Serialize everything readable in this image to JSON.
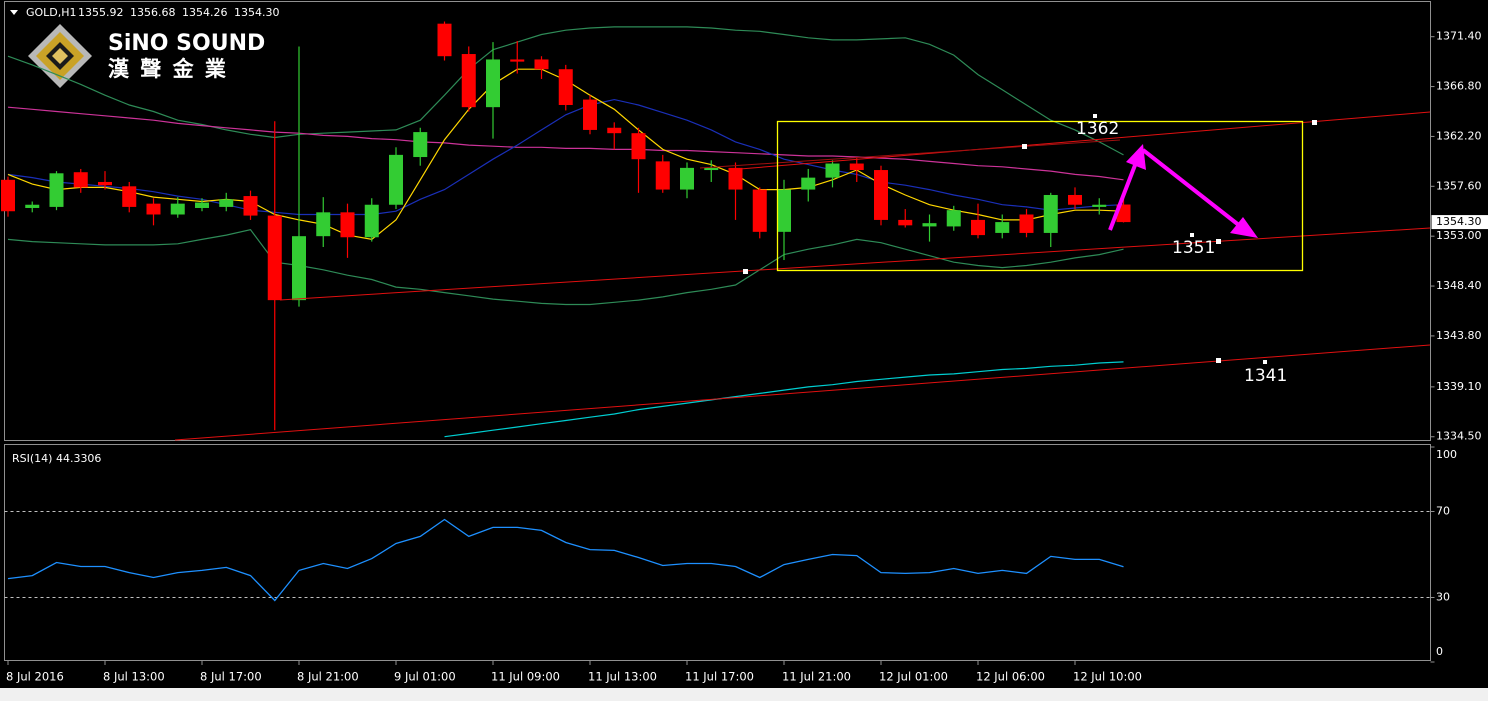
{
  "chart_data": {
    "type": "candlestick",
    "title": "GOLD,H1",
    "header_prices": [
      "1355.92",
      "1356.68",
      "1354.26",
      "1354.30"
    ],
    "logo": {
      "name": "SiNO SOUND",
      "subtitle": "漢 聲 金 業"
    },
    "categories": [
      "8 Jul 2016",
      null,
      null,
      null,
      "8 Jul 13:00",
      null,
      null,
      null,
      "8 Jul 17:00",
      null,
      null,
      null,
      "8 Jul 21:00",
      null,
      null,
      null,
      "9 Jul 01:00",
      null,
      null,
      null,
      "11 Jul 09:00",
      null,
      null,
      null,
      "11 Jul 13:00",
      null,
      null,
      null,
      "11 Jul 17:00",
      null,
      null,
      null,
      "11 Jul 21:00",
      null,
      null,
      null,
      "12 Jul 01:00",
      null,
      null,
      null,
      "12 Jul 06:00",
      null,
      null,
      null,
      "12 Jul 10:00",
      null,
      null
    ],
    "candles": {
      "up_color": "#33cc33",
      "down_color": "#ff0000",
      "open": [
        1358.2,
        1355.6,
        1355.7,
        1358.9,
        1358.0,
        1357.6,
        1356.0,
        1355.0,
        1355.6,
        1355.7,
        1356.7,
        1354.9,
        1347.1,
        1353.0,
        1355.2,
        1352.9,
        1355.9,
        1360.3,
        1372.6,
        1369.8,
        1364.9,
        1369.3,
        1369.3,
        1368.4,
        1365.6,
        1363.0,
        1362.5,
        1359.9,
        1357.3,
        1359.1,
        1359.3,
        1357.3,
        1353.4,
        1357.3,
        1358.4,
        1359.7,
        1359.1,
        1354.5,
        1353.9,
        1353.9,
        1354.5,
        1353.3,
        1355.0,
        1353.3,
        1356.8,
        1355.7,
        1355.92
      ],
      "high": [
        1358.5,
        1356.2,
        1359.0,
        1359.2,
        1359.0,
        1358.0,
        1356.5,
        1356.6,
        1356.5,
        1357.0,
        1357.2,
        1363.6,
        1370.5,
        1356.6,
        1356.0,
        1356.5,
        1361.2,
        1363.0,
        1372.8,
        1370.5,
        1370.9,
        1371.0,
        1369.6,
        1368.8,
        1366.0,
        1363.5,
        1363.0,
        1360.5,
        1359.8,
        1360.0,
        1359.8,
        1357.5,
        1358.2,
        1359.2,
        1360.0,
        1360.2,
        1359.5,
        1355.5,
        1355.0,
        1355.8,
        1356.0,
        1355.0,
        1355.5,
        1357.0,
        1357.5,
        1356.5,
        1356.68
      ],
      "low": [
        1354.8,
        1355.2,
        1355.4,
        1357.0,
        1357.3,
        1355.2,
        1354.0,
        1354.7,
        1355.3,
        1355.3,
        1354.5,
        1335.1,
        1346.5,
        1352.0,
        1351.0,
        1352.5,
        1355.5,
        1359.5,
        1369.2,
        1364.5,
        1362.0,
        1368.0,
        1367.5,
        1364.6,
        1362.4,
        1361.0,
        1357.0,
        1357.0,
        1356.5,
        1358.0,
        1354.5,
        1352.8,
        1350.8,
        1356.2,
        1357.5,
        1358.0,
        1354.0,
        1353.8,
        1352.5,
        1353.5,
        1352.8,
        1352.8,
        1352.9,
        1352.0,
        1355.5,
        1355.0,
        1354.26
      ],
      "close": [
        1355.3,
        1355.9,
        1358.8,
        1357.5,
        1357.7,
        1355.7,
        1355.0,
        1356.0,
        1356.1,
        1356.4,
        1354.9,
        1347.1,
        1353.0,
        1355.2,
        1352.9,
        1355.9,
        1360.5,
        1362.6,
        1369.6,
        1364.9,
        1369.3,
        1369.1,
        1368.4,
        1365.1,
        1362.8,
        1362.5,
        1360.1,
        1357.3,
        1359.3,
        1359.3,
        1357.3,
        1353.4,
        1357.3,
        1358.4,
        1359.7,
        1359.1,
        1354.5,
        1354.0,
        1354.2,
        1355.4,
        1353.1,
        1354.3,
        1353.3,
        1356.8,
        1355.9,
        1355.9,
        1354.3
      ]
    },
    "lines": [
      {
        "color": "#2e8b57",
        "values": [
          1369.6,
          1368.8,
          1367.9,
          1367.0,
          1366.0,
          1365.1,
          1364.5,
          1363.7,
          1363.3,
          1362.8,
          1362.4,
          1362.1,
          1362.4,
          1362.5,
          1362.6,
          1362.7,
          1362.8,
          1363.7,
          1366.0,
          1368.4,
          1370.2,
          1370.9,
          1371.6,
          1372.0,
          1372.2,
          1372.3,
          1372.3,
          1372.3,
          1372.3,
          1372.2,
          1372.0,
          1371.9,
          1371.6,
          1371.3,
          1371.1,
          1371.1,
          1371.2,
          1371.3,
          1370.7,
          1369.7,
          1367.9,
          1366.5,
          1365.1,
          1363.7,
          1362.8,
          1361.7,
          1360.5
        ]
      },
      {
        "color": "#2e8b57",
        "values": [
          1352.7,
          1352.5,
          1352.4,
          1352.3,
          1352.2,
          1352.2,
          1352.2,
          1352.3,
          1352.7,
          1353.1,
          1353.6,
          1350.6,
          1350.3,
          1349.9,
          1349.4,
          1349.0,
          1348.3,
          1348.1,
          1347.8,
          1347.5,
          1347.2,
          1347.0,
          1346.8,
          1346.7,
          1346.7,
          1346.9,
          1347.1,
          1347.4,
          1347.8,
          1348.1,
          1348.5,
          1349.9,
          1351.3,
          1351.8,
          1352.2,
          1352.7,
          1352.4,
          1351.8,
          1351.2,
          1350.6,
          1350.3,
          1350.1,
          1350.3,
          1350.6,
          1351.0,
          1351.3,
          1351.8
        ]
      },
      {
        "color": "#cc3399",
        "values": [
          1364.9,
          1364.7,
          1364.5,
          1364.3,
          1364.1,
          1363.9,
          1363.7,
          1363.4,
          1363.2,
          1363.0,
          1362.8,
          1362.6,
          1362.5,
          1362.3,
          1362.2,
          1362.0,
          1361.9,
          1361.7,
          1361.6,
          1361.4,
          1361.3,
          1361.2,
          1361.2,
          1361.1,
          1361.1,
          1361.0,
          1361.0,
          1360.9,
          1360.9,
          1360.8,
          1360.7,
          1360.6,
          1360.5,
          1360.4,
          1360.4,
          1360.3,
          1360.2,
          1360.1,
          1359.9,
          1359.7,
          1359.5,
          1359.4,
          1359.2,
          1359.0,
          1358.7,
          1358.5,
          1358.2
        ]
      },
      {
        "color": "#00ced1",
        "values": [
          null,
          null,
          null,
          null,
          null,
          null,
          null,
          null,
          null,
          null,
          null,
          null,
          null,
          null,
          null,
          null,
          null,
          null,
          1334.5,
          1334.8,
          1335.1,
          1335.4,
          1335.7,
          1336.0,
          1336.3,
          1336.6,
          1337.0,
          1337.3,
          1337.6,
          1337.9,
          1338.2,
          1338.5,
          1338.8,
          1339.1,
          1339.3,
          1339.6,
          1339.8,
          1340.0,
          1340.2,
          1340.3,
          1340.5,
          1340.7,
          1340.8,
          1341.0,
          1341.1,
          1341.3,
          1341.4
        ]
      },
      {
        "color": "#1a2fb8",
        "values": [
          1358.7,
          1358.4,
          1358.0,
          1357.8,
          1357.6,
          1357.4,
          1357.1,
          1356.7,
          1356.4,
          1355.9,
          1355.4,
          1355.2,
          1355.0,
          1355.0,
          1355.0,
          1355.0,
          1355.3,
          1356.4,
          1357.3,
          1358.7,
          1360.1,
          1361.4,
          1362.8,
          1364.2,
          1365.1,
          1365.6,
          1365.1,
          1364.4,
          1363.7,
          1362.8,
          1361.7,
          1361.0,
          1360.1,
          1359.6,
          1359.1,
          1358.7,
          1358.0,
          1357.7,
          1357.3,
          1356.8,
          1356.4,
          1355.9,
          1355.7,
          1355.4,
          1355.6,
          1355.8,
          1355.9
        ]
      },
      {
        "color": "#ffd700",
        "values": [
          1358.7,
          1357.8,
          1357.3,
          1357.5,
          1357.5,
          1357.1,
          1356.6,
          1356.4,
          1356.2,
          1356.4,
          1356.2,
          1355.0,
          1354.5,
          1354.1,
          1353.1,
          1352.7,
          1354.5,
          1358.2,
          1361.9,
          1364.7,
          1367.0,
          1368.4,
          1368.4,
          1367.4,
          1366.0,
          1364.7,
          1362.8,
          1361.0,
          1360.1,
          1359.6,
          1358.7,
          1357.3,
          1357.3,
          1357.5,
          1358.2,
          1359.1,
          1357.8,
          1356.8,
          1355.9,
          1355.4,
          1355.0,
          1354.5,
          1354.5,
          1355.0,
          1355.4,
          1355.4,
          1355.3
        ]
      }
    ],
    "ylim": [
      1334.2,
      1374.6
    ],
    "yticks": [
      {
        "value": 1371.4,
        "label": "1371.40"
      },
      {
        "value": 1366.8,
        "label": "1366.80"
      },
      {
        "value": 1362.2,
        "label": "1362.20"
      },
      {
        "value": 1357.6,
        "label": "1357.60"
      },
      {
        "value": 1353.0,
        "label": "1353.00"
      },
      {
        "value": 1348.4,
        "label": "1348.40"
      },
      {
        "value": 1343.8,
        "label": "1343.80"
      },
      {
        "value": 1339.1,
        "label": "1339.10"
      },
      {
        "value": 1334.5,
        "label": "1334.50"
      }
    ],
    "current_price": {
      "value": 1354.3,
      "label": "1354.30"
    },
    "annotations": [
      "1362",
      "1351",
      "1341"
    ],
    "rsi": {
      "title": "RSI(14) 44.3306",
      "color": "#1e90ff",
      "values": [
        38.8,
        40.2,
        46.3,
        44.4,
        44.4,
        41.6,
        39.3,
        41.6,
        42.6,
        44.0,
        40.2,
        28.6,
        42.6,
        45.8,
        43.5,
        48.1,
        55.1,
        58.4,
        66.3,
        58.4,
        62.6,
        62.6,
        61.2,
        55.6,
        52.3,
        51.9,
        48.6,
        44.9,
        45.8,
        45.8,
        44.4,
        39.3,
        45.3,
        47.7,
        50.0,
        49.5,
        41.6,
        41.2,
        41.6,
        43.5,
        41.2,
        42.6,
        41.2,
        49.1,
        47.7,
        47.7,
        44.3
      ],
      "ylim": [
        0,
        100
      ],
      "yticks": [
        100,
        70,
        30,
        0
      ],
      "levels": [
        70,
        30
      ]
    }
  }
}
